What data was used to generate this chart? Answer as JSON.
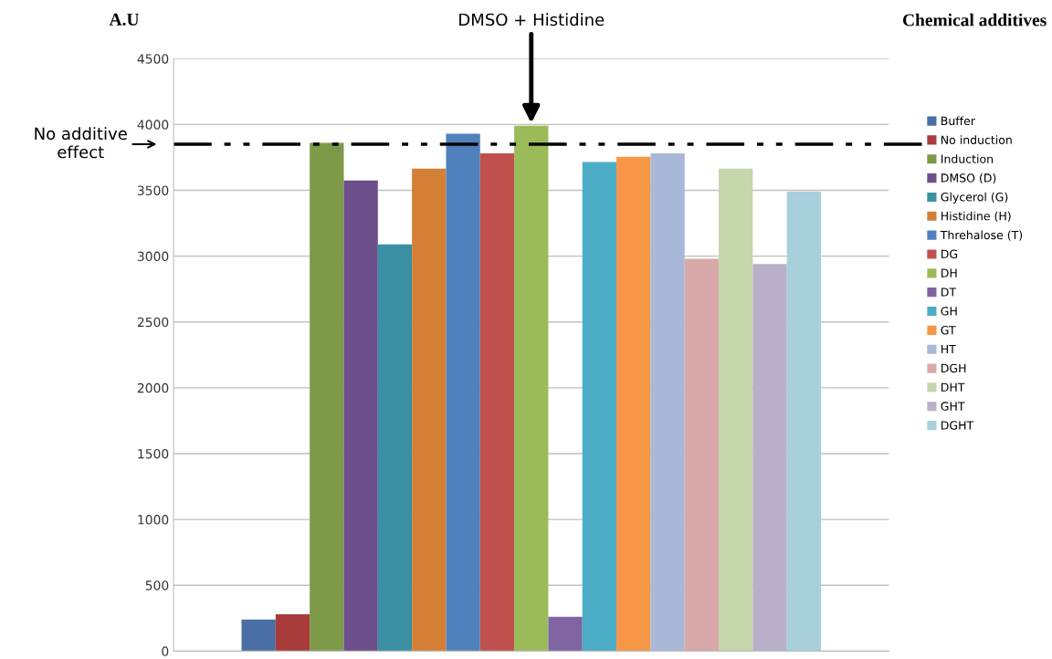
{
  "chart_data": {
    "type": "bar",
    "ylabel": "A.U",
    "legend_title": "Chemical additives",
    "categories": [
      null
    ],
    "series": [
      {
        "name": "Buffer",
        "color": "#4a6fa5",
        "values": [
          240
        ]
      },
      {
        "name": "No induction",
        "color": "#a83c3a",
        "values": [
          280
        ]
      },
      {
        "name": "Induction",
        "color": "#7d9a48",
        "values": [
          3860
        ]
      },
      {
        "name": "DMSO (D)",
        "color": "#6b4e8a",
        "values": [
          3575
        ]
      },
      {
        "name": "Glycerol (G)",
        "color": "#3a8fa3",
        "values": [
          3090
        ]
      },
      {
        "name": "Histidine (H)",
        "color": "#d47e36",
        "values": [
          3665
        ]
      },
      {
        "name": "Threhalose (T)",
        "color": "#4f81bd",
        "values": [
          3930
        ]
      },
      {
        "name": "DG",
        "color": "#c0504d",
        "values": [
          3780
        ]
      },
      {
        "name": "DH",
        "color": "#9bbb59",
        "values": [
          3990
        ]
      },
      {
        "name": "DT",
        "color": "#8064a2",
        "values": [
          260
        ]
      },
      {
        "name": "GH",
        "color": "#4bacc6",
        "values": [
          3715
        ]
      },
      {
        "name": "GT",
        "color": "#f79646",
        "values": [
          3755
        ]
      },
      {
        "name": "HT",
        "color": "#a9b8d8",
        "values": [
          3780
        ]
      },
      {
        "name": "DGH",
        "color": "#d9a9a9",
        "values": [
          2980
        ]
      },
      {
        "name": "DHT",
        "color": "#c4d6aa",
        "values": [
          3665
        ]
      },
      {
        "name": "GHT",
        "color": "#b9afc9",
        "values": [
          2940
        ]
      },
      {
        "name": "DGHT",
        "color": "#a9cfdc",
        "values": [
          3490
        ]
      }
    ],
    "ylim": [
      0,
      4500
    ],
    "yticks": [
      0,
      500,
      1000,
      1500,
      2000,
      2500,
      3000,
      3500,
      4000,
      4500
    ],
    "grid": "y",
    "legend": "right",
    "ref_lines": [
      {
        "axis": "y",
        "value": 3850,
        "label": "No additive\neffect",
        "color": "#000000",
        "line_style": "dashdot"
      }
    ],
    "annotations": [
      {
        "text": "DMSO + Histidine",
        "y": 3990
      }
    ]
  }
}
